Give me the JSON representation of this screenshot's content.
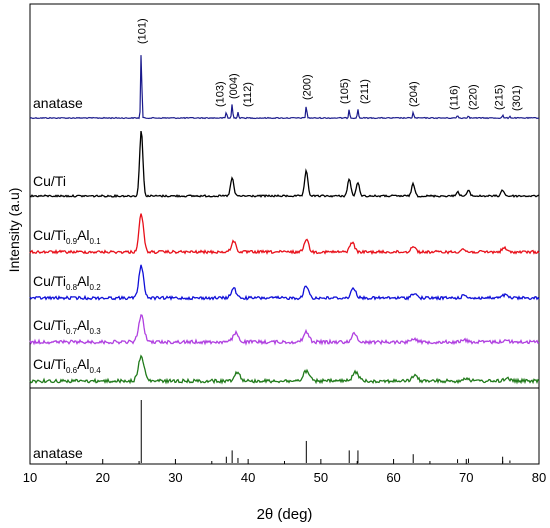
{
  "chart_data": {
    "type": "line",
    "xlabel": "2θ (deg)",
    "ylabel": "Intensity (a.u)",
    "xlim": [
      10,
      80
    ],
    "xticks": [
      10,
      20,
      30,
      40,
      50,
      60,
      70,
      80
    ],
    "grid": false,
    "peak_labels": [
      {
        "label": "(101)",
        "x": 25.3
      },
      {
        "label": "(103)",
        "x": 37.0
      },
      {
        "label": "(004)",
        "x": 37.8
      },
      {
        "label": "(112)",
        "x": 38.6
      },
      {
        "label": "(200)",
        "x": 48.0
      },
      {
        "label": "(105)",
        "x": 53.9
      },
      {
        "label": "(211)",
        "x": 55.1
      },
      {
        "label": "(204)",
        "x": 62.7
      },
      {
        "label": "(116)",
        "x": 68.8
      },
      {
        "label": "(220)",
        "x": 70.3
      },
      {
        "label": "(215)",
        "x": 75.0
      },
      {
        "label": "(301)",
        "x": 76.0
      }
    ],
    "series": [
      {
        "name": "anatase",
        "color": "#1a1a8c",
        "width_scale": 0.35,
        "peaks": [
          [
            25.3,
            70
          ],
          [
            37.0,
            6
          ],
          [
            37.8,
            14
          ],
          [
            38.6,
            6
          ],
          [
            48.0,
            13
          ],
          [
            53.9,
            9
          ],
          [
            55.1,
            9
          ],
          [
            62.7,
            6
          ],
          [
            68.8,
            3
          ],
          [
            70.3,
            3
          ],
          [
            75.0,
            3
          ],
          [
            76.0,
            2
          ]
        ]
      },
      {
        "name": "Cu/Ti",
        "color": "#000000",
        "width_scale": 1.0,
        "peaks": [
          [
            25.3,
            66
          ],
          [
            37.8,
            18
          ],
          [
            48.0,
            25
          ],
          [
            53.9,
            17
          ],
          [
            55.1,
            13
          ],
          [
            62.7,
            12
          ],
          [
            68.8,
            4
          ],
          [
            70.3,
            5
          ],
          [
            75.0,
            6
          ]
        ]
      },
      {
        "name": "Cu/Ti0.9Al0.1",
        "label_main": "Cu/Ti",
        "label_sub1": "0.9",
        "label_mid": "Al",
        "label_sub2": "0.1",
        "color": "#e8101a",
        "width_scale": 1.4,
        "peaks": [
          [
            25.3,
            38
          ],
          [
            38.0,
            11
          ],
          [
            48.0,
            13
          ],
          [
            54.3,
            10
          ],
          [
            62.7,
            6
          ],
          [
            69.5,
            3
          ],
          [
            75.2,
            4
          ]
        ]
      },
      {
        "name": "Cu/Ti0.8Al0.2",
        "label_main": "Cu/Ti",
        "label_sub1": "0.8",
        "label_mid": "Al",
        "label_sub2": "0.2",
        "color": "#1010d8",
        "width_scale": 1.5,
        "peaks": [
          [
            25.3,
            32
          ],
          [
            38.0,
            10
          ],
          [
            48.0,
            12
          ],
          [
            54.5,
            10
          ],
          [
            62.8,
            5
          ],
          [
            69.8,
            3
          ],
          [
            75.3,
            3
          ]
        ]
      },
      {
        "name": "Cu/Ti0.7Al0.3",
        "label_main": "Cu/Ti",
        "label_sub1": "0.7",
        "label_mid": "Al",
        "label_sub2": "0.3",
        "color": "#b040e0",
        "width_scale": 1.7,
        "peaks": [
          [
            25.3,
            26
          ],
          [
            38.3,
            9
          ],
          [
            48.0,
            10
          ],
          [
            54.6,
            8
          ],
          [
            62.8,
            4
          ],
          [
            69.8,
            2
          ],
          [
            75.4,
            2
          ]
        ]
      },
      {
        "name": "Cu/Ti0.6Al0.4",
        "label_main": "Cu/Ti",
        "label_sub1": "0.6",
        "label_mid": "Al",
        "label_sub2": "0.4",
        "color": "#207a1a",
        "width_scale": 1.8,
        "peaks": [
          [
            25.3,
            24
          ],
          [
            38.5,
            9
          ],
          [
            48.0,
            10
          ],
          [
            54.8,
            9
          ],
          [
            62.9,
            5
          ],
          [
            70.0,
            3
          ],
          [
            75.6,
            3
          ]
        ]
      }
    ],
    "reference": {
      "name": "anatase",
      "lines": [
        [
          25.3,
          100
        ],
        [
          37.0,
          10
        ],
        [
          37.8,
          20
        ],
        [
          38.6,
          8
        ],
        [
          48.0,
          35
        ],
        [
          53.9,
          20
        ],
        [
          55.1,
          20
        ],
        [
          62.7,
          14
        ],
        [
          68.8,
          6
        ],
        [
          70.3,
          7
        ],
        [
          75.0,
          10
        ],
        [
          76.0,
          4
        ]
      ]
    }
  }
}
